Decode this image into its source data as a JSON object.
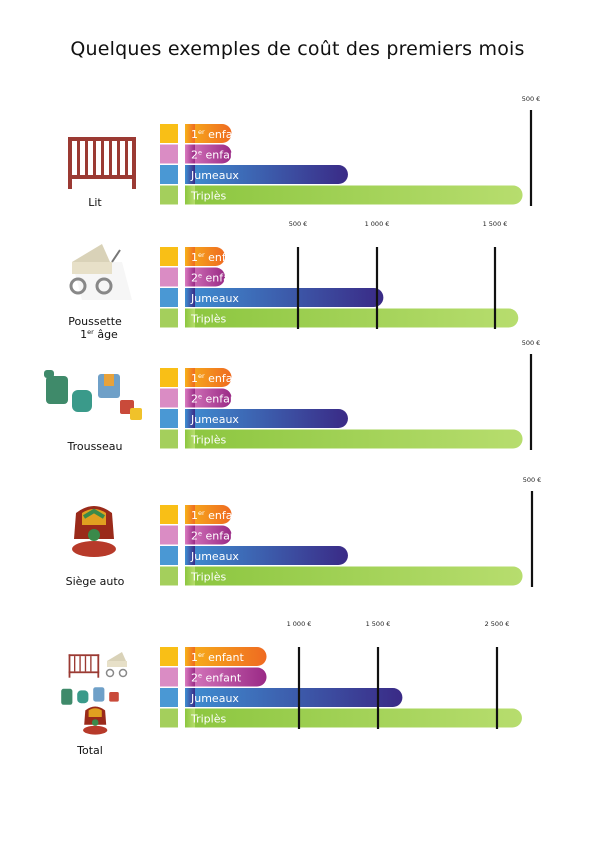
{
  "title": "Quelques exemples de coût des premiers mois",
  "colors": {
    "first_child": [
      "#f7b21a",
      "#ef6a21"
    ],
    "second_child": [
      "#d97bbf",
      "#9a2a86"
    ],
    "twins": [
      "#3f8fd2",
      "#3a2a86"
    ],
    "triplets": [
      "#8cc63f",
      "#b7dd6e"
    ],
    "first_child_swatch": "#f9bf16",
    "second_child_swatch": "#da8cc4",
    "twins_swatch": "#4a98d4",
    "triplets_swatch": "#a4cf5c",
    "furniture": "#9b3a33"
  },
  "chart_data": [
    {
      "type": "bar",
      "title": "Lit",
      "icon": "crib-icon",
      "categories": [
        "1er enfant",
        "2e enfant",
        "Jumeaux",
        "Triplès"
      ],
      "values": [
        400,
        400,
        1400,
        2900
      ],
      "reference_lines": [
        {
          "label": "500 €"
        }
      ],
      "series_colors": [
        "first_child",
        "second_child",
        "twins",
        "triplets"
      ]
    },
    {
      "type": "bar",
      "title": "Poussette 1er âge",
      "icon": "stroller-icon",
      "categories": [
        "1er enfant",
        "2e enfant",
        "Jumeaux",
        "Triplès"
      ],
      "values": [
        250,
        250,
        1250,
        2100
      ],
      "reference_lines": [
        {
          "label": "500 €"
        },
        {
          "label": "1 000 €"
        },
        {
          "label": "1 500 €"
        }
      ]
    },
    {
      "type": "bar",
      "title": "Trousseau",
      "icon": "clothes-icon",
      "categories": [
        "1er enfant",
        "2e enfant",
        "Jumeaux",
        "Triplès"
      ],
      "values": [
        400,
        400,
        1400,
        2900
      ],
      "reference_lines": [
        {
          "label": "500 €"
        }
      ]
    },
    {
      "type": "bar",
      "title": "Siège auto",
      "icon": "car-seat-icon",
      "categories": [
        "1er enfant",
        "2e enfant",
        "Jumeaux",
        "Triplès"
      ],
      "values": [
        400,
        400,
        1400,
        2900
      ],
      "reference_lines": [
        {
          "label": "500 €"
        }
      ]
    },
    {
      "type": "bar",
      "title": "Total",
      "icon": "all-items-icon",
      "categories": [
        "1er enfant",
        "2e enfant",
        "Jumeaux",
        "Triplès"
      ],
      "values": [
        750,
        750,
        2000,
        3100
      ],
      "reference_lines": [
        {
          "label": "1 000 €"
        },
        {
          "label": "1 500 €"
        },
        {
          "label": "2 500 €"
        }
      ]
    }
  ],
  "bar_labels": {
    "first": {
      "num": "1",
      "sup": "er",
      "rest": " enfant"
    },
    "second": {
      "num": "2",
      "sup": "e",
      "rest": " enfant"
    },
    "twins": "Jumeaux",
    "triplets": "Triplès"
  },
  "category_labels": {
    "lit": "Lit",
    "poussette_line1": "Poussette",
    "poussette_line2_num": "1",
    "poussette_line2_sup": "er",
    "poussette_line2_rest": " âge",
    "trousseau": "Trousseau",
    "siege": "Siège auto",
    "total": "Total"
  }
}
